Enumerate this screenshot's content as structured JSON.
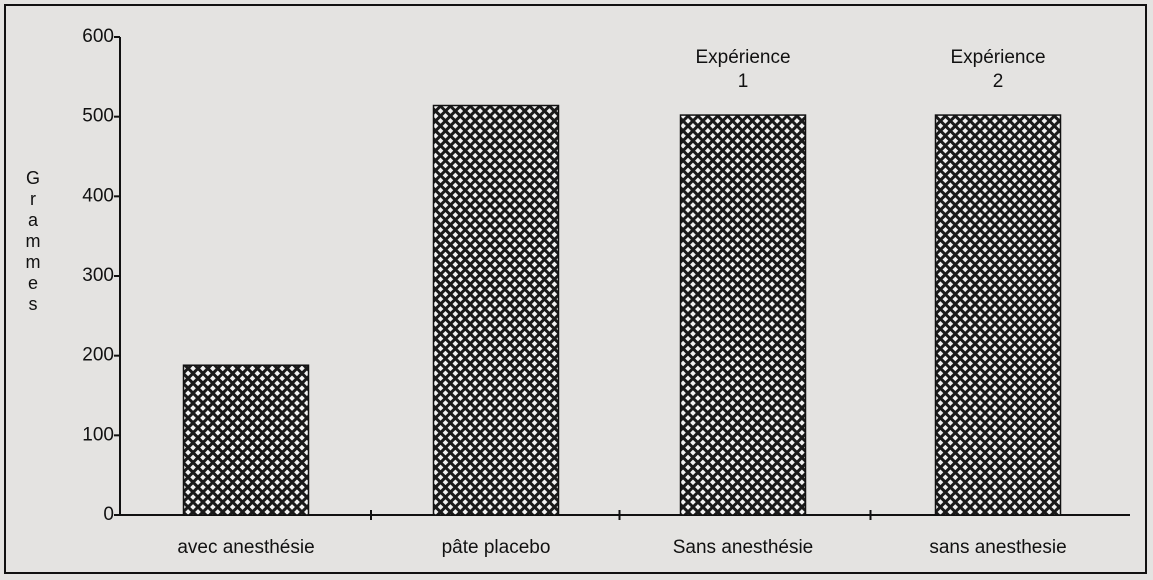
{
  "chart_data": {
    "type": "bar",
    "y_label": "Grammes",
    "categories": [
      "avec anesthésie",
      "pâte placebo",
      "Sans anesthésie",
      "sans anesthesie"
    ],
    "values": [
      188,
      514,
      502,
      502
    ],
    "color": "#1a1a1a",
    "ylim": [
      0,
      600
    ],
    "yticks": [
      0,
      100,
      200,
      300,
      400,
      500,
      600
    ],
    "annotations": [
      [
        "Expérience",
        "1"
      ],
      [
        "Expérience",
        "2"
      ]
    ]
  }
}
